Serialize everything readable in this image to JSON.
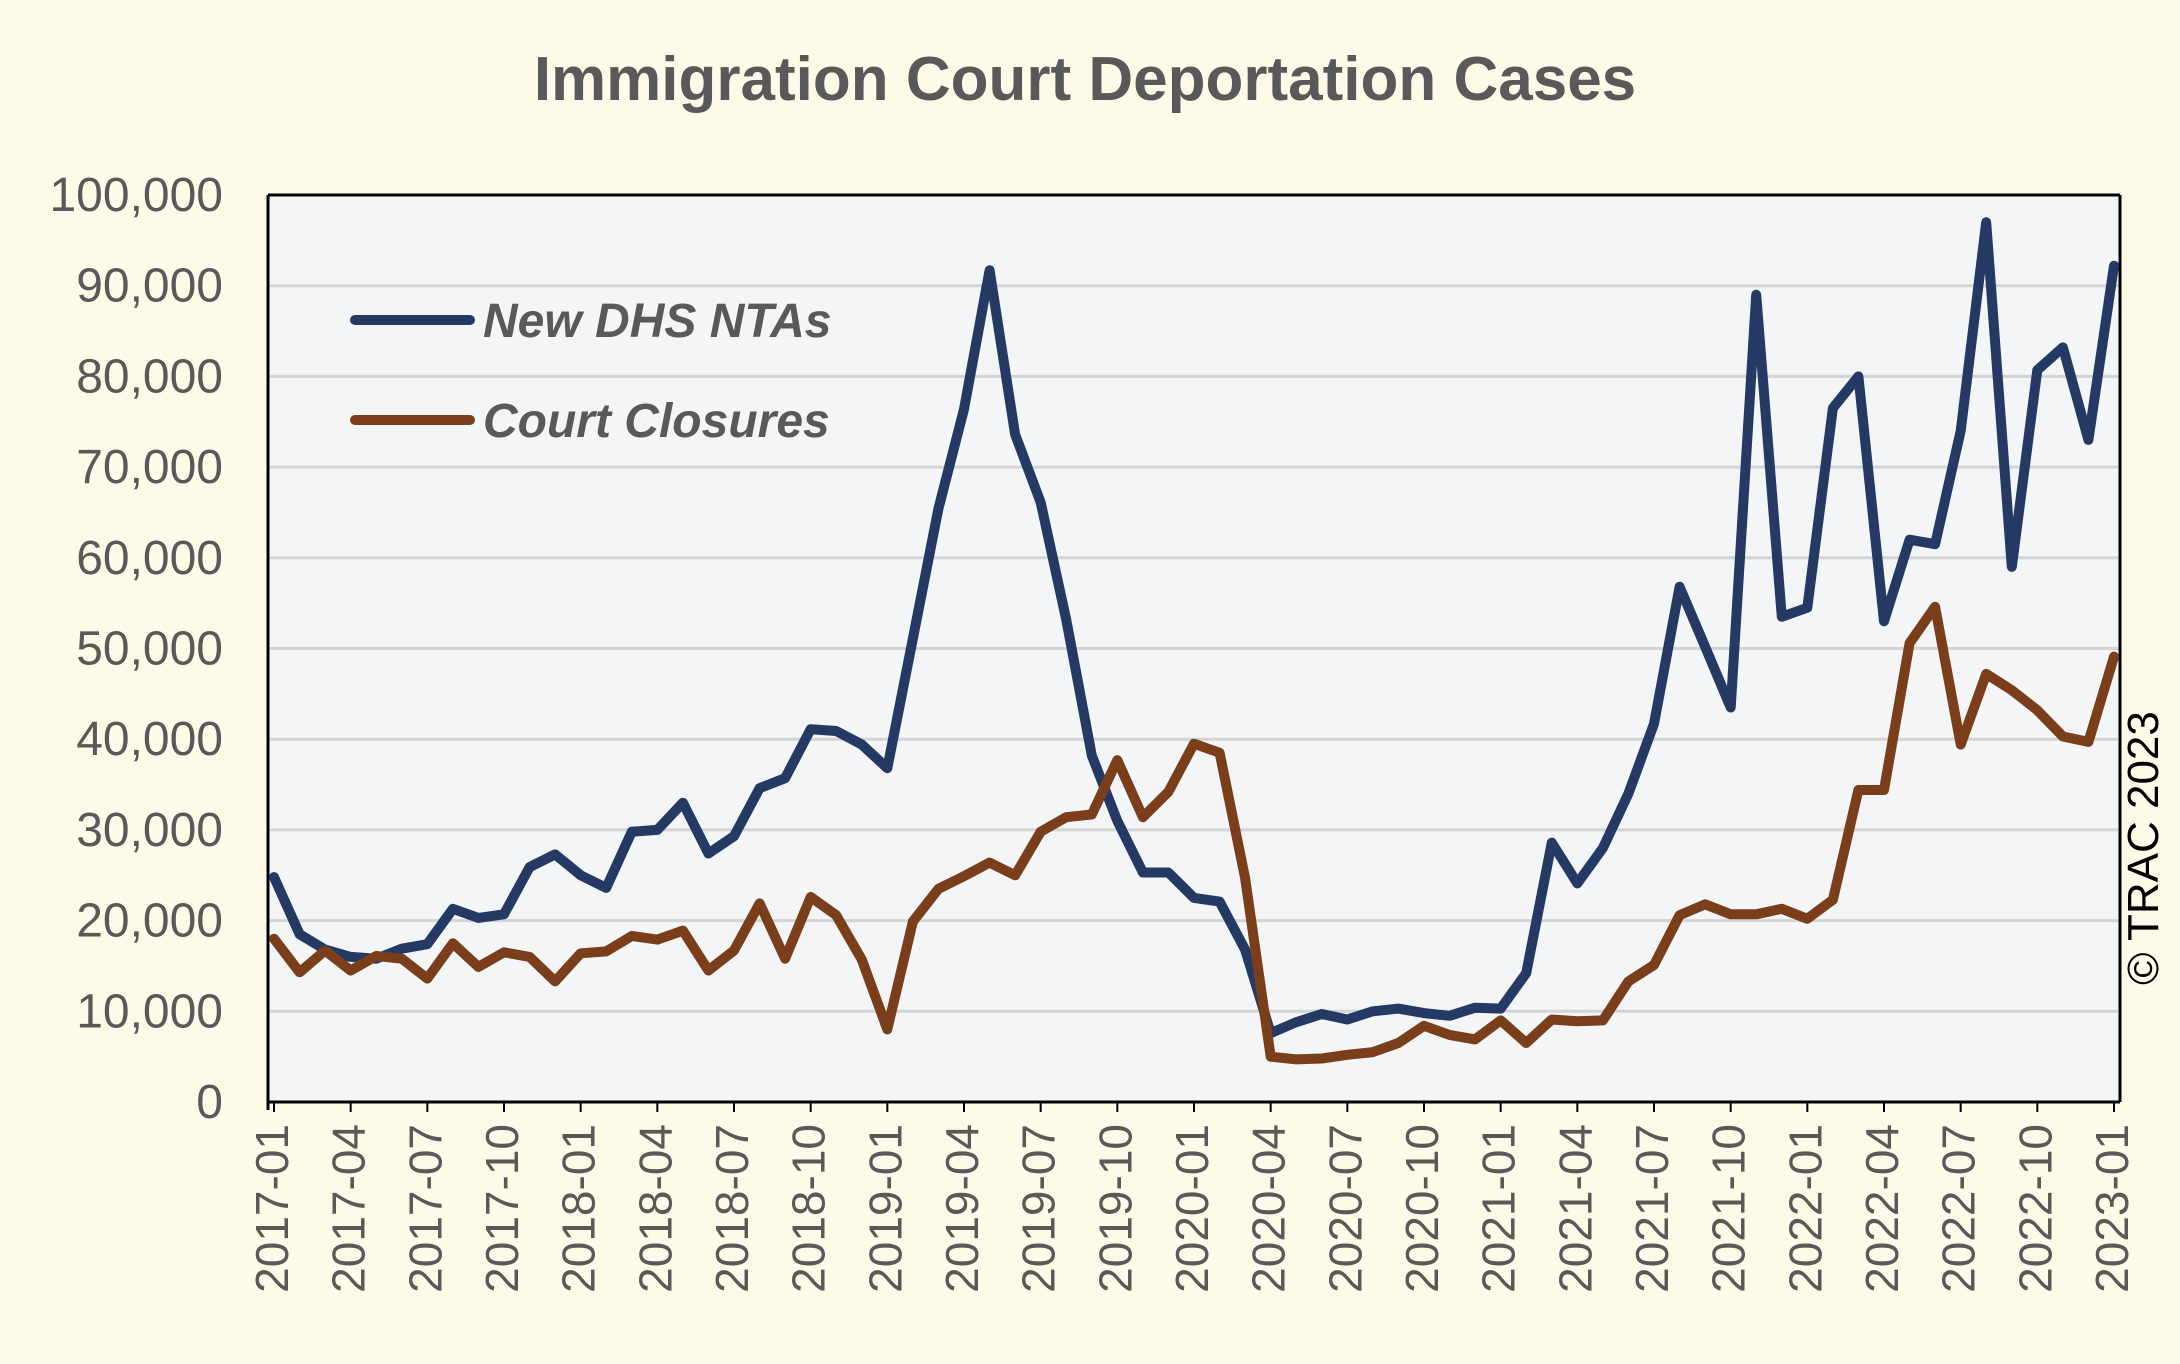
{
  "chart_data": {
    "type": "line",
    "title": "Immigration Court Deportation Cases",
    "xlabel": "",
    "ylabel": "",
    "ylim": [
      0,
      100000
    ],
    "yticks": [
      "0",
      "10,000",
      "20,000",
      "30,000",
      "40,000",
      "50,000",
      "60,000",
      "70,000",
      "80,000",
      "90,000",
      "100,000"
    ],
    "yticks_values": [
      0,
      10000,
      20000,
      30000,
      40000,
      50000,
      60000,
      70000,
      80000,
      90000,
      100000
    ],
    "x": [
      "2017-01",
      "2017-02",
      "2017-03",
      "2017-04",
      "2017-05",
      "2017-06",
      "2017-07",
      "2017-08",
      "2017-09",
      "2017-10",
      "2017-11",
      "2017-12",
      "2018-01",
      "2018-02",
      "2018-03",
      "2018-04",
      "2018-05",
      "2018-06",
      "2018-07",
      "2018-08",
      "2018-09",
      "2018-10",
      "2018-11",
      "2018-12",
      "2019-01",
      "2019-02",
      "2019-03",
      "2019-04",
      "2019-05",
      "2019-06",
      "2019-07",
      "2019-08",
      "2019-09",
      "2019-10",
      "2019-11",
      "2019-12",
      "2020-01",
      "2020-02",
      "2020-03",
      "2020-04",
      "2020-05",
      "2020-06",
      "2020-07",
      "2020-08",
      "2020-09",
      "2020-10",
      "2020-11",
      "2020-12",
      "2021-01",
      "2021-02",
      "2021-03",
      "2021-04",
      "2021-05",
      "2021-06",
      "2021-07",
      "2021-08",
      "2021-09",
      "2021-10",
      "2021-11",
      "2021-12",
      "2022-01",
      "2022-02",
      "2022-03",
      "2022-04",
      "2022-05",
      "2022-06",
      "2022-07",
      "2022-08",
      "2022-09",
      "2022-10",
      "2022-11",
      "2022-12",
      "2023-01"
    ],
    "xticks": [
      "2017-01",
      "2017-04",
      "2017-07",
      "2017-10",
      "2018-01",
      "2018-04",
      "2018-07",
      "2018-10",
      "2019-01",
      "2019-04",
      "2019-07",
      "2019-10",
      "2020-01",
      "2020-04",
      "2020-07",
      "2020-10",
      "2021-01",
      "2021-04",
      "2021-07",
      "2021-10",
      "2022-01",
      "2022-04",
      "2022-07",
      "2022-10",
      "2023-01"
    ],
    "grid": true,
    "legend_position": "top-left",
    "series": [
      {
        "name": "New DHS NTAs",
        "color": "#243a64",
        "values": [
          24800,
          18500,
          16800,
          16000,
          15800,
          16900,
          17400,
          21300,
          20300,
          20700,
          25900,
          27300,
          25000,
          23600,
          29800,
          30000,
          33000,
          27400,
          29300,
          34600,
          35700,
          41100,
          40900,
          39400,
          36800,
          51100,
          65400,
          76400,
          91700,
          73600,
          66100,
          53200,
          38200,
          31000,
          25300,
          25300,
          22500,
          22100,
          16800,
          7600,
          8800,
          9700,
          9100,
          10000,
          10300,
          9800,
          9500,
          10400,
          10300,
          14200,
          28600,
          24100,
          28000,
          34000,
          41700,
          56800,
          50200,
          43500,
          89000,
          53500,
          54500,
          76500,
          80000,
          53000,
          62000,
          61500,
          74000,
          97000,
          59000,
          80700,
          83200,
          73000,
          92200
        ]
      },
      {
        "name": "Court Closures",
        "color": "#7a3e1b",
        "values": [
          18000,
          14300,
          16700,
          14500,
          16100,
          15800,
          13600,
          17500,
          14900,
          16500,
          16000,
          13300,
          16400,
          16600,
          18300,
          17900,
          18900,
          14500,
          16700,
          21900,
          15800,
          22600,
          20600,
          15700,
          8000,
          19900,
          23500,
          24900,
          26400,
          25000,
          29800,
          31400,
          31700,
          37700,
          31400,
          34200,
          39500,
          38500,
          24700,
          5000,
          4700,
          4800,
          5200,
          5500,
          6500,
          8400,
          7400,
          6900,
          9000,
          6500,
          9100,
          8900,
          9000,
          13300,
          15100,
          20600,
          21800,
          20700,
          20700,
          21300,
          20200,
          22300,
          34400,
          34400,
          50600,
          54600,
          39400,
          47200,
          45400,
          43200,
          40300,
          39700,
          49100
        ]
      }
    ],
    "credit": "© TRAC 2023"
  }
}
